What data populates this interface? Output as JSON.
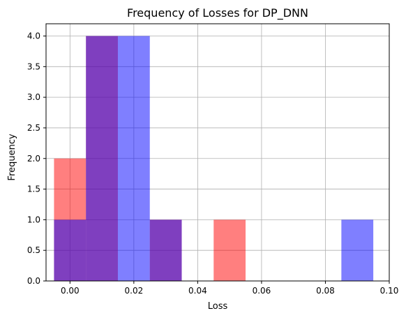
{
  "chart_data": {
    "type": "bar",
    "title": "Frequency of Losses for DP_DNN",
    "xlabel": "Loss",
    "ylabel": "Frequency",
    "xlim": [
      -0.0075,
      0.1
    ],
    "ylim": [
      0,
      4.2
    ],
    "xticks": [
      0.0,
      0.02,
      0.04,
      0.06,
      0.08,
      0.1
    ],
    "xtick_labels": [
      "0.00",
      "0.02",
      "0.04",
      "0.06",
      "0.08",
      "0.10"
    ],
    "yticks": [
      0.0,
      0.5,
      1.0,
      1.5,
      2.0,
      2.5,
      3.0,
      3.5,
      4.0
    ],
    "ytick_labels": [
      "0.0",
      "0.5",
      "1.0",
      "1.5",
      "2.0",
      "2.5",
      "3.0",
      "3.5",
      "4.0"
    ],
    "grid": true,
    "bin_width": 0.01,
    "series": [
      {
        "color": "#ff0000",
        "opacity": 0.5,
        "bins": [
          {
            "x0": -0.005,
            "x1": 0.005,
            "count": 2
          },
          {
            "x0": 0.005,
            "x1": 0.015,
            "count": 4
          },
          {
            "x0": 0.025,
            "x1": 0.035,
            "count": 1
          },
          {
            "x0": 0.045,
            "x1": 0.055,
            "count": 1
          }
        ]
      },
      {
        "color": "#0000ff",
        "opacity": 0.5,
        "bins": [
          {
            "x0": -0.005,
            "x1": 0.005,
            "count": 1
          },
          {
            "x0": 0.005,
            "x1": 0.015,
            "count": 4
          },
          {
            "x0": 0.015,
            "x1": 0.025,
            "count": 4
          },
          {
            "x0": 0.025,
            "x1": 0.035,
            "count": 1
          },
          {
            "x0": 0.085,
            "x1": 0.095,
            "count": 1
          }
        ]
      }
    ]
  }
}
